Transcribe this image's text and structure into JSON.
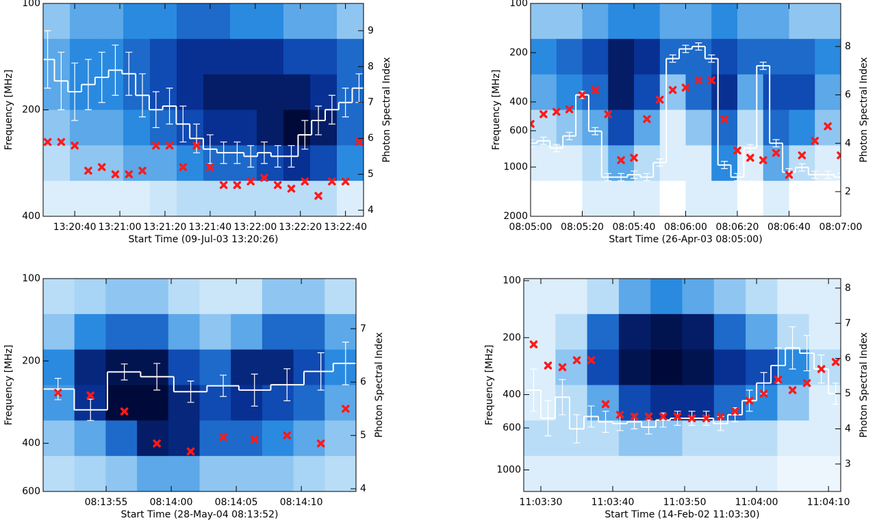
{
  "chart_data": [
    {
      "type": "spectrogram",
      "x_label": "Start Time (09-Jul-03 13:20:26)",
      "y_label": "Frequency [MHz]",
      "y2_label": "Photon Spectral Index",
      "xlim": [
        0,
        142
      ],
      "xticks": [
        {
          "value": 14,
          "label": "13:20:40"
        },
        {
          "value": 34,
          "label": "13:21:00"
        },
        {
          "value": 54,
          "label": "13:21:20"
        },
        {
          "value": 74,
          "label": "13:21:40"
        },
        {
          "value": 94,
          "label": "13:22:00"
        },
        {
          "value": 114,
          "label": "13:22:20"
        },
        {
          "value": 134,
          "label": "13:22:40"
        }
      ],
      "ylim": [
        400,
        100
      ],
      "yticks": [
        100,
        200,
        400
      ],
      "log_y": true,
      "y2lim": [
        3.83,
        9.76
      ],
      "y2ticks": [
        4,
        5,
        6,
        7,
        8,
        9
      ],
      "colormap": [
        "#ffffff",
        "#a8d4f5",
        "#2a8ae0",
        "#0a3aa8",
        "#000a3a"
      ],
      "spectrogram": [
        [
          0.3,
          0.4,
          0.4,
          0.5,
          0.5,
          0.6,
          0.6,
          0.5,
          0.5,
          0.4,
          0.4,
          0.3
        ],
        [
          0.4,
          0.5,
          0.5,
          0.6,
          0.7,
          0.8,
          0.8,
          0.8,
          0.8,
          0.7,
          0.7,
          0.6
        ],
        [
          0.4,
          0.5,
          0.5,
          0.6,
          0.7,
          0.8,
          0.9,
          0.9,
          0.9,
          0.9,
          0.8,
          0.6
        ],
        [
          0.3,
          0.4,
          0.4,
          0.5,
          0.6,
          0.7,
          0.8,
          0.8,
          0.9,
          1,
          0.9,
          0.6
        ],
        [
          0.2,
          0.3,
          0.3,
          0.4,
          0.4,
          0.5,
          0.6,
          0.6,
          0.7,
          0.8,
          0.7,
          0.5
        ],
        [
          0.1,
          0.1,
          0.1,
          0.1,
          0.15,
          0.2,
          0.2,
          0.2,
          0.2,
          0.2,
          0.2,
          0.1
        ]
      ],
      "x": [
        2,
        8,
        14,
        20,
        26,
        32,
        38,
        44,
        50,
        56,
        62,
        68,
        74,
        80,
        86,
        92,
        98,
        104,
        110,
        116,
        122,
        128,
        134,
        140
      ],
      "series": [
        {
          "color": "#ffffff",
          "style": "step",
          "axis": "y2",
          "values": [
            8.2,
            7.6,
            7.3,
            7.5,
            7.7,
            7.9,
            7.8,
            7.2,
            6.8,
            6.9,
            6.4,
            6.0,
            5.7,
            5.6,
            5.6,
            5.5,
            5.6,
            5.5,
            5.5,
            6.1,
            6.5,
            6.8,
            7.0,
            7.4
          ],
          "errors": [
            0.8,
            0.8,
            0.8,
            0.7,
            0.7,
            0.7,
            0.6,
            0.6,
            0.5,
            0.5,
            0.5,
            0.4,
            0.4,
            0.3,
            0.3,
            0.3,
            0.3,
            0.3,
            0.3,
            0.4,
            0.4,
            0.4,
            0.4,
            0.4
          ]
        },
        {
          "color": "#ff1a1a",
          "style": "cross",
          "axis": "y2",
          "values": [
            5.9,
            5.9,
            5.8,
            5.1,
            5.2,
            5.0,
            5.0,
            5.1,
            5.8,
            5.8,
            5.2,
            5.8,
            5.2,
            4.7,
            4.7,
            4.8,
            4.9,
            4.7,
            4.6,
            4.8,
            4.4,
            4.8,
            4.8,
            5.9
          ]
        }
      ]
    },
    {
      "type": "spectrogram",
      "x_label": "Start Time (26-Apr-03 08:05:00)",
      "y_label": "Frequency [MHz]",
      "y2_label": "Photon Spectral Index",
      "xlim": [
        0,
        120
      ],
      "xticks": [
        {
          "value": 0,
          "label": "08:05:00"
        },
        {
          "value": 20,
          "label": "08:05:20"
        },
        {
          "value": 40,
          "label": "08:05:40"
        },
        {
          "value": 60,
          "label": "08:06:00"
        },
        {
          "value": 80,
          "label": "08:06:20"
        },
        {
          "value": 100,
          "label": "08:06:40"
        },
        {
          "value": 120,
          "label": "08:07:00"
        }
      ],
      "ylim": [
        2000,
        100
      ],
      "yticks": [
        100,
        200,
        400,
        600,
        1000,
        2000
      ],
      "log_y": true,
      "y2lim": [
        0.98,
        9.78
      ],
      "y2ticks": [
        2,
        4,
        6,
        8
      ],
      "colormap": [
        "#ffffff",
        "#a8d4f5",
        "#2a8ae0",
        "#0a3aa8",
        "#000a3a"
      ],
      "spectrogram": [
        [
          0.3,
          0.3,
          0.4,
          0.5,
          0.5,
          0.4,
          0.4,
          0.5,
          0.4,
          0.4,
          0.3,
          0.3
        ],
        [
          0.5,
          0.6,
          0.7,
          0.9,
          0.8,
          0.6,
          0.6,
          0.7,
          0.6,
          0.6,
          0.6,
          0.5
        ],
        [
          0.4,
          0.5,
          0.6,
          0.9,
          0.7,
          0.3,
          0.6,
          0.8,
          0.4,
          0.7,
          0.7,
          0.4
        ],
        [
          0.2,
          0.3,
          0.4,
          0.7,
          0.4,
          0.1,
          0.3,
          0.6,
          0.2,
          0.6,
          0.5,
          0.3
        ],
        [
          0.1,
          0.1,
          0.2,
          0.4,
          0.2,
          0.1,
          0.1,
          0.5,
          0.1,
          0.4,
          0.2,
          0.1
        ],
        [
          0,
          0,
          0.1,
          0.1,
          0.1,
          0,
          0.1,
          0.1,
          0,
          0.1,
          0,
          0
        ]
      ],
      "x": [
        0,
        5,
        10,
        15,
        20,
        25,
        30,
        35,
        40,
        45,
        50,
        55,
        60,
        65,
        70,
        75,
        80,
        85,
        90,
        95,
        100,
        105,
        110,
        115,
        120
      ],
      "series": [
        {
          "color": "#ffffff",
          "style": "step",
          "axis": "y2",
          "values": [
            4.0,
            4.1,
            3.8,
            4.3,
            6.0,
            4.5,
            2.6,
            2.6,
            2.7,
            2.6,
            3.2,
            7.5,
            7.9,
            8.0,
            7.5,
            3.1,
            2.6,
            3.8,
            7.2,
            4.0,
            2.8,
            3.0,
            2.7,
            2.7,
            2.6
          ],
          "errors": [
            0.15,
            0.15,
            0.15,
            0.15,
            0.15,
            0.15,
            0.15,
            0.15,
            0.15,
            0.15,
            0.15,
            0.15,
            0.15,
            0.15,
            0.15,
            0.15,
            0.15,
            0.15,
            0.15,
            0.15,
            0.15,
            0.15,
            0.15,
            0.15,
            0.15
          ]
        },
        {
          "color": "#ff1a1a",
          "style": "cross",
          "axis": "y2",
          "values": [
            4.8,
            5.2,
            5.3,
            5.4,
            6.0,
            6.2,
            5.2,
            3.3,
            3.4,
            5.0,
            5.8,
            6.2,
            6.3,
            6.6,
            6.6,
            5.0,
            3.7,
            3.4,
            3.3,
            3.6,
            2.7,
            3.5,
            4.1,
            4.7,
            3.5
          ]
        }
      ]
    },
    {
      "type": "spectrogram",
      "x_label": "Start Time (28-May-04 08:13:52)",
      "y_label": "Frequency [MHz]",
      "y2_label": "Photon Spectral Index",
      "xlim": [
        -1.84,
        22.2
      ],
      "xticks": [
        {
          "value": 3,
          "label": "08:13:55"
        },
        {
          "value": 8,
          "label": "08:14:00"
        },
        {
          "value": 13,
          "label": "08:14:05"
        },
        {
          "value": 18,
          "label": "08:14:10"
        }
      ],
      "ylim": [
        600,
        100
      ],
      "yticks": [
        100,
        200,
        400,
        600
      ],
      "log_y": true,
      "y2lim": [
        3.95,
        7.94
      ],
      "y2ticks": [
        4,
        5,
        6,
        7
      ],
      "colormap": [
        "#ffffff",
        "#a8d4f5",
        "#2a8ae0",
        "#0a3aa8",
        "#000a3a"
      ],
      "spectrogram": [
        [
          0.2,
          0.25,
          0.3,
          0.3,
          0.2,
          0.15,
          0.15,
          0.3,
          0.3,
          0.2
        ],
        [
          0.3,
          0.5,
          0.6,
          0.6,
          0.4,
          0.3,
          0.4,
          0.6,
          0.6,
          0.4
        ],
        [
          0.5,
          0.85,
          0.95,
          0.95,
          0.7,
          0.6,
          0.85,
          0.85,
          0.7,
          0.5
        ],
        [
          0.45,
          0.8,
          1,
          1,
          0.85,
          0.7,
          0.8,
          0.7,
          0.6,
          0.4
        ],
        [
          0.3,
          0.4,
          0.6,
          0.9,
          0.85,
          0.6,
          0.6,
          0.5,
          0.4,
          0.3
        ],
        [
          0.2,
          0.25,
          0.3,
          0.4,
          0.4,
          0.3,
          0.3,
          0.3,
          0.25,
          0.2
        ]
      ],
      "x": [
        -0.7,
        1.8,
        4.4,
        6.9,
        9.5,
        12.0,
        14.4,
        16.9,
        19.5,
        21.4
      ],
      "series": [
        {
          "color": "#ffffff",
          "style": "step",
          "axis": "y2",
          "values": [
            5.87,
            5.48,
            6.19,
            6.1,
            5.82,
            5.93,
            5.85,
            5.95,
            6.2,
            6.35
          ],
          "errors": [
            0.2,
            0.2,
            0.15,
            0.25,
            0.2,
            0.2,
            0.3,
            0.3,
            0.35,
            0.4
          ]
        },
        {
          "color": "#ff1a1a",
          "style": "cross",
          "axis": "y2",
          "values": [
            5.8,
            5.75,
            5.45,
            4.85,
            4.7,
            4.97,
            4.93,
            5.0,
            4.85,
            5.5
          ]
        }
      ]
    },
    {
      "type": "spectrogram",
      "x_label": "Start Time (14-Feb-02 11:03:30)",
      "y_label": "Frequency [MHz]",
      "y2_label": "Photon Spectral Index",
      "xlim": [
        -2.38,
        41.7
      ],
      "xticks": [
        {
          "value": 0,
          "label": "11:03:30"
        },
        {
          "value": 10,
          "label": "11:03:40"
        },
        {
          "value": 20,
          "label": "11:03:50"
        },
        {
          "value": 30,
          "label": "11:04:00"
        },
        {
          "value": 40,
          "label": "11:04:10"
        }
      ],
      "ylim": [
        1300,
        97.5
      ],
      "yticks": [
        200,
        400,
        600,
        1000,
        100
      ],
      "log_y": true,
      "y2lim": [
        2.22,
        8.27
      ],
      "y2ticks": [
        3,
        4,
        5,
        6,
        7,
        8
      ],
      "colormap": [
        "#ffffff",
        "#a8d4f5",
        "#2a8ae0",
        "#0a3aa8",
        "#000a3a"
      ],
      "spectrogram": [
        [
          0.1,
          0.1,
          0.2,
          0.4,
          0.5,
          0.4,
          0.3,
          0.2,
          0.1,
          0.1
        ],
        [
          0.1,
          0.2,
          0.6,
          0.9,
          0.95,
          0.9,
          0.6,
          0.4,
          0.2,
          0.1
        ],
        [
          0.1,
          0.3,
          0.7,
          0.95,
          1,
          0.95,
          0.8,
          0.7,
          0.5,
          0.2
        ],
        [
          0.1,
          0.2,
          0.4,
          0.7,
          0.8,
          0.8,
          0.6,
          0.5,
          0.3,
          0.1
        ],
        [
          0.2,
          0.2,
          0.2,
          0.3,
          0.3,
          0.2,
          0.2,
          0.2,
          0.1,
          0.1
        ],
        [
          0.1,
          0.1,
          0.1,
          0.1,
          0.1,
          0.1,
          0.1,
          0.1,
          0.05,
          0.05
        ]
      ],
      "x": [
        -1,
        1,
        3,
        5,
        7,
        9,
        11,
        13,
        15,
        17,
        19,
        21,
        23,
        25,
        27,
        29,
        31,
        33,
        35,
        37,
        39,
        41
      ],
      "series": [
        {
          "color": "#ffffff",
          "style": "step",
          "axis": "y2",
          "values": [
            5.1,
            4.3,
            4.9,
            4.0,
            4.35,
            4.2,
            4.15,
            4.2,
            4.05,
            4.25,
            4.3,
            4.3,
            4.3,
            4.15,
            4.4,
            4.8,
            5.3,
            5.8,
            6.3,
            6.15,
            5.7,
            5.0
          ],
          "errors": [
            0.6,
            0.5,
            0.5,
            0.4,
            0.3,
            0.3,
            0.2,
            0.2,
            0.2,
            0.2,
            0.2,
            0.2,
            0.2,
            0.2,
            0.2,
            0.3,
            0.3,
            0.5,
            0.6,
            0.5,
            0.4,
            0.3
          ]
        },
        {
          "color": "#ff1a1a",
          "style": "cross",
          "axis": "y2",
          "values": [
            6.4,
            5.8,
            5.75,
            5.95,
            5.95,
            4.7,
            4.4,
            4.35,
            4.35,
            4.35,
            4.35,
            4.3,
            4.3,
            4.35,
            4.5,
            4.8,
            5.0,
            5.4,
            5.1,
            5.3,
            5.7,
            5.9
          ]
        }
      ]
    }
  ]
}
